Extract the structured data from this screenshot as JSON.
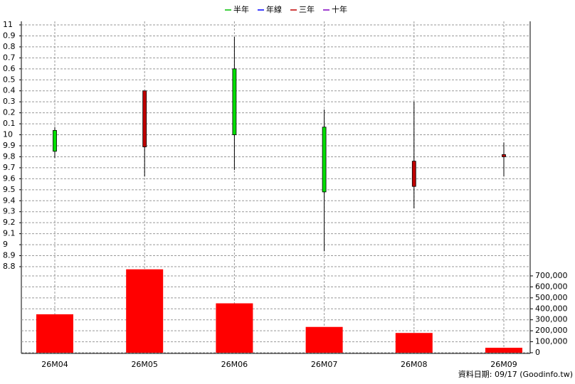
{
  "chart_data": {
    "type": "candlestick",
    "legend": [
      {
        "name": "半年",
        "color": "#00c000"
      },
      {
        "name": "年線",
        "color": "#0000ff"
      },
      {
        "name": "三年",
        "color": "#c00000"
      },
      {
        "name": "十年",
        "color": "#8000c0"
      }
    ],
    "categories": [
      "26M04",
      "26M05",
      "26M06",
      "26M07",
      "26M08",
      "26M09"
    ],
    "open": [
      9.85,
      10.4,
      10.0,
      9.48,
      9.76,
      9.82
    ],
    "high": [
      10.07,
      10.4,
      10.89,
      10.23,
      10.3,
      9.93
    ],
    "low": [
      9.79,
      9.62,
      9.68,
      8.94,
      9.33,
      9.62
    ],
    "close": [
      10.04,
      9.89,
      10.6,
      10.07,
      9.53,
      9.8
    ],
    "up_color": "#00e000",
    "down_color": "#c00000",
    "ylim": [
      8.8,
      11
    ],
    "yticks": [
      11,
      {
        "value": 10.9,
        "label": "0.9"
      },
      {
        "value": 10.8,
        "label": "0.8"
      },
      {
        "value": 10.7,
        "label": "0.7"
      },
      {
        "value": 10.6,
        "label": "0.6"
      },
      {
        "value": 10.5,
        "label": "0.5"
      },
      {
        "value": 10.4,
        "label": "0.4"
      },
      {
        "value": 10.3,
        "label": "0.3"
      },
      {
        "value": 10.2,
        "label": "0.2"
      },
      {
        "value": 10.1,
        "label": "0.1"
      },
      10,
      9.9,
      9.8,
      9.7,
      9.6,
      9.5,
      9.4,
      9.3,
      9.2,
      9.1,
      9,
      8.9,
      8.8
    ],
    "volume": {
      "name": "volume",
      "axis": "y2",
      "color": "#ff0000",
      "values": [
        350000,
        760000,
        450000,
        235000,
        180000,
        45000
      ]
    },
    "y2lim": [
      0,
      784000
    ],
    "y2ticks": [
      {
        "value": 0,
        "label": "0"
      },
      {
        "value": 100000,
        "label": "100,000"
      },
      {
        "value": 200000,
        "label": "200,000"
      },
      {
        "value": 300000,
        "label": "300,000"
      },
      {
        "value": 400000,
        "label": "400,000"
      },
      {
        "value": 500000,
        "label": "500,000"
      },
      {
        "value": 600000,
        "label": "600,000"
      },
      {
        "value": 700000,
        "label": "700,000"
      }
    ],
    "grid": true,
    "footer": "資料日期: 09/17  (Goodinfo.tw)"
  }
}
